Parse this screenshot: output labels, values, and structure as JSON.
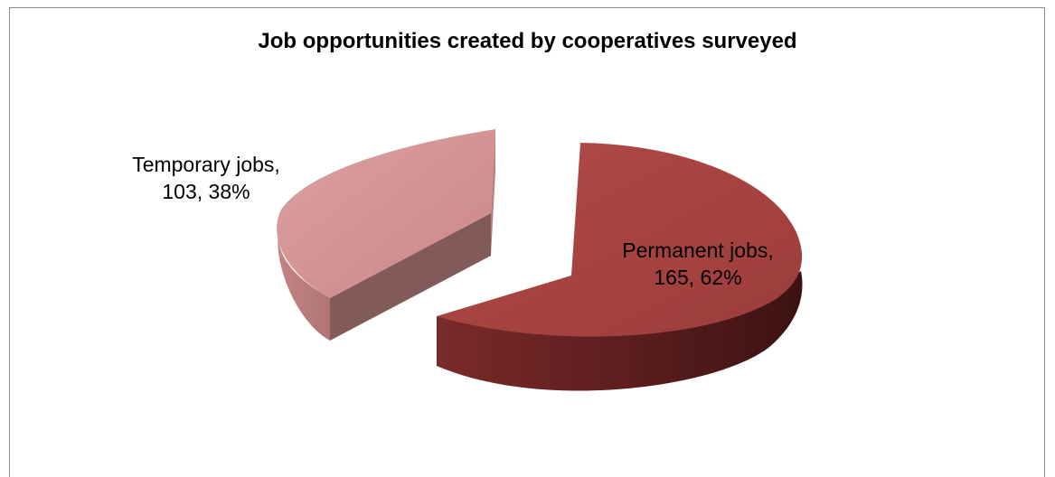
{
  "chart_data": {
    "type": "pie",
    "title": "Job opportunities created by cooperatives surveyed",
    "categories": [
      "Permanent jobs",
      "Temporary jobs"
    ],
    "values": [
      165,
      103
    ],
    "percentages": [
      "62%",
      "38%"
    ],
    "data_labels": [
      {
        "line1": "Permanent jobs,",
        "line2": "165, 62%"
      },
      {
        "line1": "Temporary jobs,",
        "line2": "103, 38%"
      }
    ],
    "colors": {
      "permanent_top": "#a94442",
      "permanent_side": "#6e2424",
      "temporary_top": "#d48f8f",
      "temporary_side": "#8a5d5d"
    },
    "style": "3d-exploded"
  }
}
